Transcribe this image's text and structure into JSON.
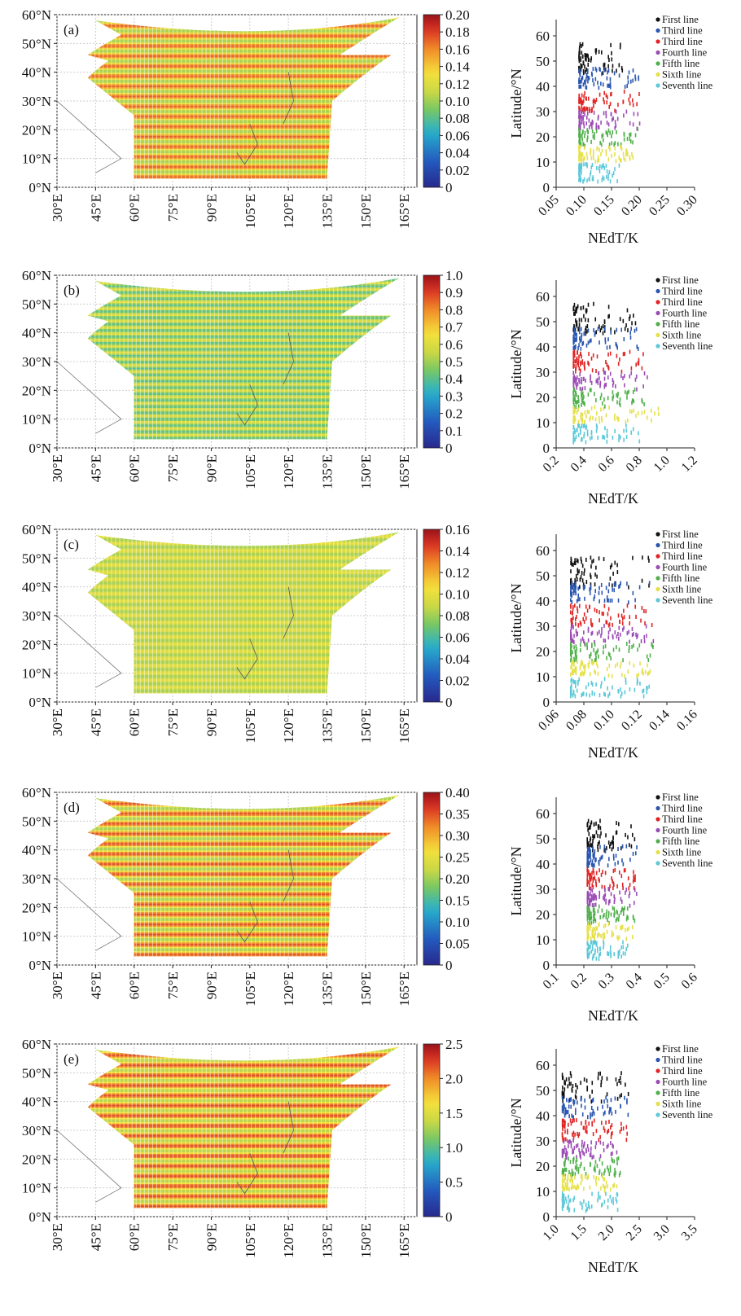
{
  "map_axes": {
    "lat_ticks": [
      "0°N",
      "10°N",
      "20°N",
      "30°N",
      "40°N",
      "50°N",
      "60°N"
    ],
    "lon_ticks": [
      "30°E",
      "45°E",
      "60°E",
      "75°E",
      "90°E",
      "105°E",
      "120°E",
      "135°E",
      "150°E",
      "165°E"
    ],
    "lat_range": [
      0,
      60
    ],
    "lon_range": [
      30,
      170
    ]
  },
  "scatter_common": {
    "xlabel": "NEdT/K",
    "ylabel": "Latitude/°N",
    "y_ticks": [
      "0",
      "10",
      "20",
      "30",
      "40",
      "50",
      "60"
    ],
    "legend": [
      "First line",
      "Third line",
      "Third line",
      "Fourth line",
      "Fifth line",
      "Sixth line",
      "Seventh line"
    ],
    "series_colors": [
      "#111111",
      "#2a56b0",
      "#e02424",
      "#9b4cb5",
      "#4fb04a",
      "#e6e04a",
      "#5cc8d8"
    ],
    "series_lat": [
      [
        46,
        58
      ],
      [
        40,
        48
      ],
      [
        31,
        39
      ],
      [
        24,
        31
      ],
      [
        17,
        24
      ],
      [
        11,
        17
      ],
      [
        3,
        10
      ]
    ]
  },
  "chart_data": [
    {
      "type": "heatmap",
      "panel": "(a)",
      "colorbar": {
        "ticks": [
          "0",
          "0.02",
          "0.04",
          "0.06",
          "0.08",
          "0.10",
          "0.12",
          "0.14",
          "0.16",
          "0.18",
          "0.20"
        ],
        "range": [
          0,
          0.2
        ]
      },
      "field_range": [
        0.1,
        0.17
      ],
      "stripe_period": 3.5
    },
    {
      "type": "scatter",
      "panel": "(a)",
      "xlabel": "NEdT/K",
      "ylabel": "Latitude/°N",
      "x_ticks": [
        "0.05",
        "0.10",
        "0.15",
        "0.20",
        "0.25",
        "0.30"
      ],
      "xlim": [
        0.05,
        0.3
      ],
      "ylim": [
        0,
        60
      ],
      "series_x": [
        [
          0.09,
          0.17
        ],
        [
          0.09,
          0.2
        ],
        [
          0.09,
          0.2
        ],
        [
          0.09,
          0.2
        ],
        [
          0.09,
          0.2
        ],
        [
          0.09,
          0.19
        ],
        [
          0.09,
          0.17
        ]
      ]
    },
    {
      "type": "heatmap",
      "panel": "(b)",
      "colorbar": {
        "ticks": [
          "0",
          "0.1",
          "0.2",
          "0.3",
          "0.4",
          "0.5",
          "0.6",
          "0.7",
          "0.8",
          "0.9",
          "1.0"
        ],
        "range": [
          0,
          1.0
        ]
      },
      "field_range": [
        0.4,
        0.62
      ],
      "stripe_period": 2.2
    },
    {
      "type": "scatter",
      "panel": "(b)",
      "xlabel": "NEdT/K",
      "ylabel": "Latitude/°N",
      "x_ticks": [
        "0.2",
        "0.4",
        "0.6",
        "0.8",
        "1.0",
        "1.2"
      ],
      "xlim": [
        0.2,
        1.2
      ],
      "ylim": [
        0,
        60
      ],
      "series_x": [
        [
          0.32,
          0.8
        ],
        [
          0.32,
          0.8
        ],
        [
          0.32,
          0.85
        ],
        [
          0.32,
          0.9
        ],
        [
          0.32,
          0.9
        ],
        [
          0.32,
          0.95
        ],
        [
          0.32,
          0.8
        ]
      ]
    },
    {
      "type": "heatmap",
      "panel": "(c)",
      "colorbar": {
        "ticks": [
          "0",
          "0.02",
          "0.04",
          "0.06",
          "0.08",
          "0.10",
          "0.12",
          "0.14",
          "0.16"
        ],
        "range": [
          0,
          0.16
        ]
      },
      "field_range": [
        0.08,
        0.1
      ],
      "stripe_period": 2.5
    },
    {
      "type": "scatter",
      "panel": "(c)",
      "xlabel": "NEdT/K",
      "ylabel": "Latitude/°N",
      "x_ticks": [
        "0.06",
        "0.08",
        "0.10",
        "0.12",
        "0.14",
        "0.16"
      ],
      "xlim": [
        0.06,
        0.16
      ],
      "ylim": [
        0,
        60
      ],
      "series_x": [
        [
          0.07,
          0.13
        ],
        [
          0.07,
          0.13
        ],
        [
          0.07,
          0.13
        ],
        [
          0.07,
          0.13
        ],
        [
          0.07,
          0.13
        ],
        [
          0.07,
          0.13
        ],
        [
          0.07,
          0.13
        ]
      ]
    },
    {
      "type": "heatmap",
      "panel": "(d)",
      "colorbar": {
        "ticks": [
          "0",
          "0.05",
          "0.10",
          "0.15",
          "0.20",
          "0.25",
          "0.30",
          "0.35",
          "0.40"
        ],
        "range": [
          0,
          0.4
        ]
      },
      "field_range": [
        0.2,
        0.35
      ],
      "stripe_period": 3.5
    },
    {
      "type": "scatter",
      "panel": "(d)",
      "xlabel": "NEdT/K",
      "ylabel": "Latitude/°N",
      "x_ticks": [
        "0.1",
        "0.2",
        "0.3",
        "0.4",
        "0.5",
        "0.6"
      ],
      "xlim": [
        0.1,
        0.6
      ],
      "ylim": [
        0,
        60
      ],
      "series_x": [
        [
          0.21,
          0.39
        ],
        [
          0.21,
          0.39
        ],
        [
          0.21,
          0.39
        ],
        [
          0.21,
          0.39
        ],
        [
          0.21,
          0.39
        ],
        [
          0.21,
          0.38
        ],
        [
          0.21,
          0.36
        ]
      ]
    },
    {
      "type": "heatmap",
      "panel": "(e)",
      "colorbar": {
        "ticks": [
          "0",
          "0.5",
          "1.0",
          "1.5",
          "2.0",
          "2.5"
        ],
        "range": [
          0,
          2.5
        ]
      },
      "field_range": [
        1.3,
        2.2
      ],
      "stripe_period": 3.5
    },
    {
      "type": "scatter",
      "panel": "(e)",
      "xlabel": "NEdT/K",
      "ylabel": "Latitude/°N",
      "x_ticks": [
        "1.0",
        "1.5",
        "2.0",
        "2.5",
        "3.0",
        "3.5"
      ],
      "xlim": [
        1.0,
        3.5
      ],
      "ylim": [
        0,
        60
      ],
      "series_x": [
        [
          1.1,
          2.3
        ],
        [
          1.1,
          2.3
        ],
        [
          1.1,
          2.3
        ],
        [
          1.1,
          2.2
        ],
        [
          1.1,
          2.2
        ],
        [
          1.1,
          2.1
        ],
        [
          1.1,
          2.1
        ]
      ]
    }
  ]
}
